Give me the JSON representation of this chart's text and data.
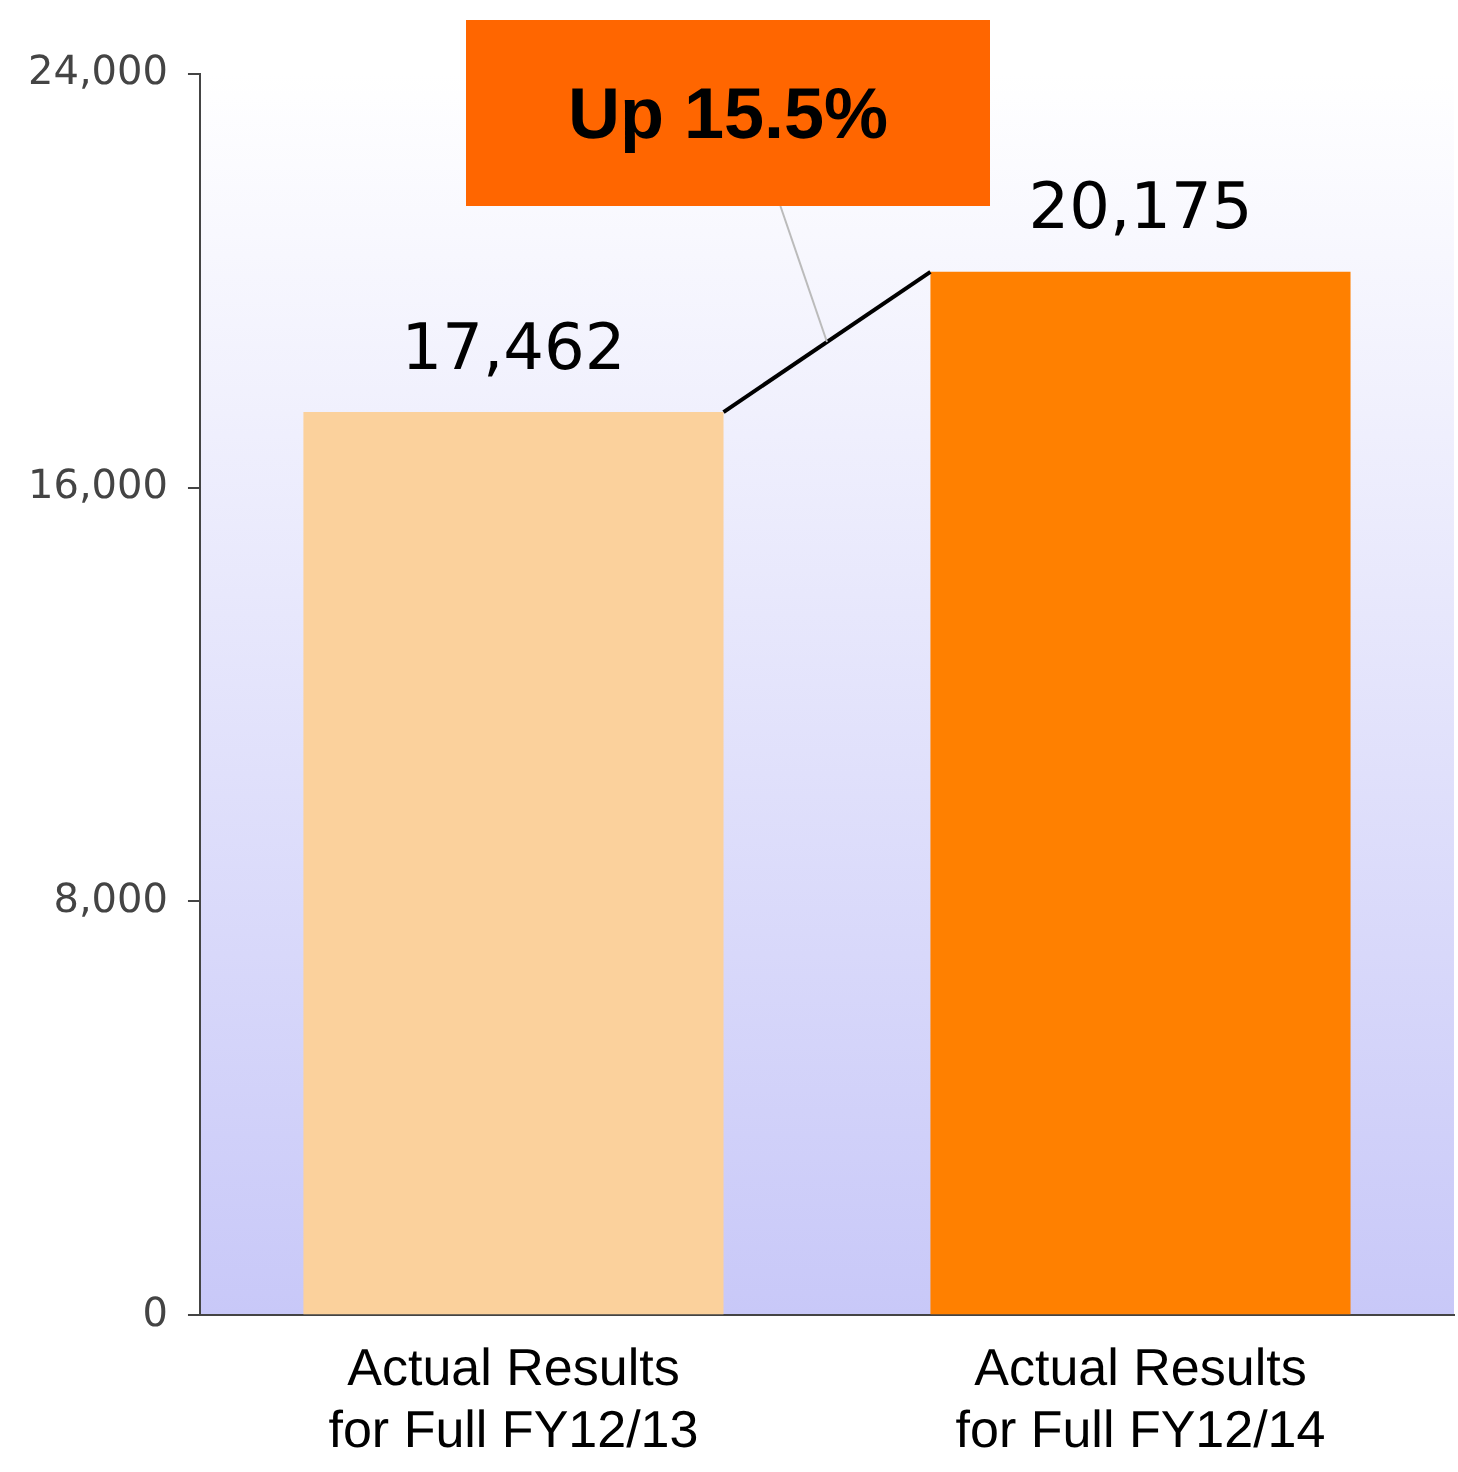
{
  "chart_data": {
    "type": "bar",
    "categories": [
      "Actual Results for Full FY12/13",
      "Actual Results for Full FY12/14"
    ],
    "values": [
      17462,
      20175
    ],
    "colors": [
      "#fbd19c",
      "#ff8000"
    ],
    "value_labels": [
      "17,462",
      "20,175"
    ],
    "ylim": [
      0,
      24000
    ],
    "yticks": [
      0,
      {
        "value": 8000,
        "label": "8,000"
      },
      {
        "value": 16000,
        "label": "16,000"
      },
      {
        "value": 24000,
        "label": "24,000"
      }
    ],
    "grid": false,
    "legend": false,
    "annotations": [
      "Up 15.5%"
    ]
  }
}
